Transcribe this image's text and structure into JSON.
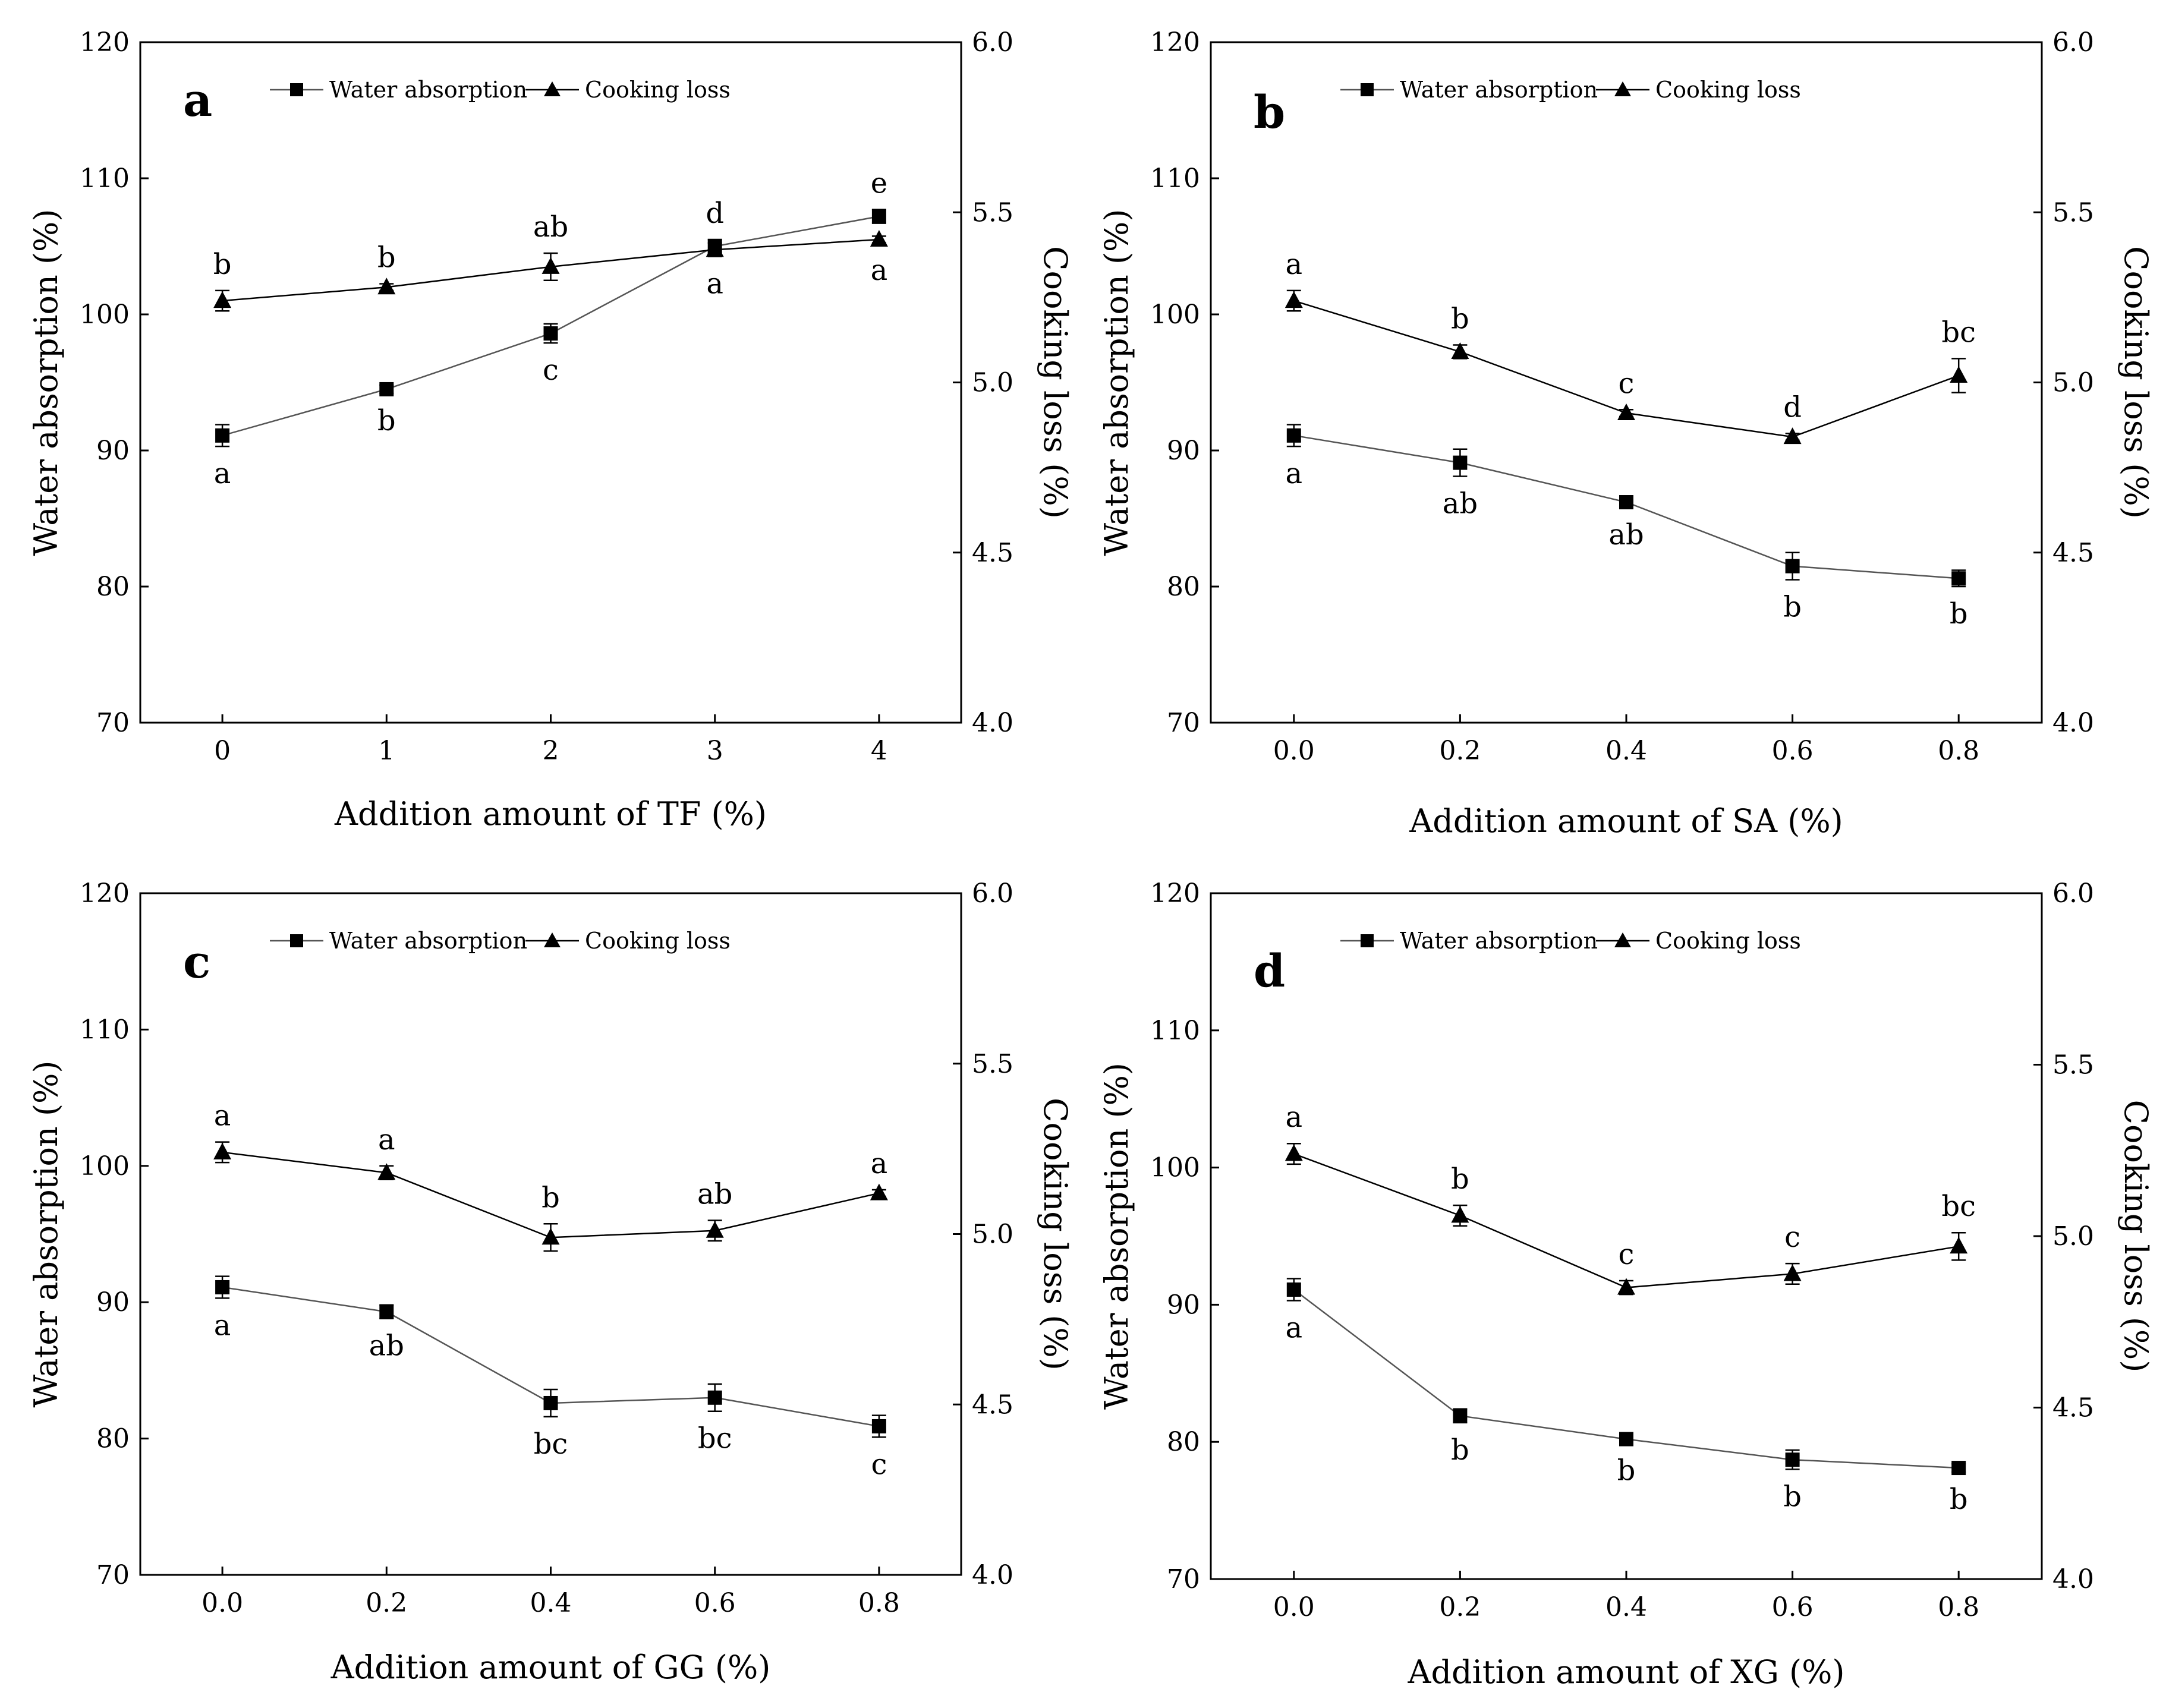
{
  "chart_data": [
    {
      "type": "line",
      "panel_label": "a",
      "x": [
        0,
        1,
        2,
        3,
        4
      ],
      "x_tick_labels": [
        "0",
        "1",
        "2",
        "3",
        "4"
      ],
      "xlabel": "Addition amount of TF (%)",
      "ylabel": "Water absorption (%)",
      "y2label": "Cooking loss (%)",
      "ylim": [
        70,
        120
      ],
      "y_ticks": [
        "70",
        "80",
        "90",
        "100",
        "110",
        "120"
      ],
      "y2lim": [
        4.0,
        6.0
      ],
      "y2_ticks": [
        "4.0",
        "4.5",
        "5.0",
        "5.5",
        "6.0"
      ],
      "series": [
        {
          "name": "Water absorption",
          "axis": "left",
          "marker": "square",
          "values": [
            91.1,
            94.5,
            98.6,
            105.0,
            107.2
          ],
          "errors": [
            0.8,
            0.3,
            0.7,
            0.5,
            0.5
          ],
          "letters": [
            "a",
            "b",
            "c",
            "d",
            "e"
          ]
        },
        {
          "name": "Cooking loss",
          "axis": "right",
          "marker": "triangle",
          "values": [
            5.24,
            5.28,
            5.34,
            5.39,
            5.42
          ],
          "errors": [
            0.03,
            0.01,
            0.04,
            0.02,
            0.01
          ],
          "letters": [
            "b",
            "b",
            "ab",
            "a",
            "a"
          ]
        }
      ]
    },
    {
      "type": "line",
      "panel_label": "b",
      "x": [
        0.0,
        0.2,
        0.4,
        0.6,
        0.8
      ],
      "x_tick_labels": [
        "0.0",
        "0.2",
        "0.4",
        "0.6",
        "0.8"
      ],
      "xlabel": "Addition amount of SA (%)",
      "ylabel": "Water absorption (%)",
      "y2label": "Cooking loss (%)",
      "ylim": [
        70,
        120
      ],
      "y_ticks": [
        "70",
        "80",
        "90",
        "100",
        "110",
        "120"
      ],
      "y2lim": [
        4.0,
        6.0
      ],
      "y2_ticks": [
        "4.0",
        "4.5",
        "5.0",
        "5.5",
        "6.0"
      ],
      "series": [
        {
          "name": "Water absorption",
          "axis": "left",
          "marker": "square",
          "values": [
            91.1,
            89.1,
            86.2,
            81.5,
            80.6
          ],
          "errors": [
            0.8,
            1.0,
            0.4,
            1.0,
            0.6
          ],
          "letters": [
            "a",
            "ab",
            "ab",
            "b",
            "b"
          ]
        },
        {
          "name": "Cooking loss",
          "axis": "right",
          "marker": "triangle",
          "values": [
            5.24,
            5.09,
            4.91,
            4.84,
            5.02
          ],
          "errors": [
            0.03,
            0.02,
            0.01,
            0.01,
            0.05
          ],
          "letters": [
            "a",
            "b",
            "c",
            "d",
            "bc"
          ]
        }
      ]
    },
    {
      "type": "line",
      "panel_label": "c",
      "x": [
        0.0,
        0.2,
        0.4,
        0.6,
        0.8
      ],
      "x_tick_labels": [
        "0.0",
        "0.2",
        "0.4",
        "0.6",
        "0.8"
      ],
      "xlabel": "Addition amount of GG (%)",
      "ylabel": "Water absorption (%)",
      "y2label": "Cooking loss (%)",
      "ylim": [
        70,
        120
      ],
      "y_ticks": [
        "70",
        "80",
        "90",
        "100",
        "110",
        "120"
      ],
      "y2lim": [
        4.0,
        6.0
      ],
      "y2_ticks": [
        "4.0",
        "4.5",
        "5.0",
        "5.5",
        "6.0"
      ],
      "series": [
        {
          "name": "Water absorption",
          "axis": "left",
          "marker": "square",
          "values": [
            91.1,
            89.3,
            82.6,
            83.0,
            80.9
          ],
          "errors": [
            0.8,
            0.5,
            1.0,
            1.0,
            0.8
          ],
          "letters": [
            "a",
            "ab",
            "bc",
            "bc",
            "c"
          ]
        },
        {
          "name": "Cooking loss",
          "axis": "right",
          "marker": "triangle",
          "values": [
            5.24,
            5.18,
            4.99,
            5.01,
            5.12
          ],
          "errors": [
            0.03,
            0.02,
            0.04,
            0.03,
            0.01
          ],
          "letters": [
            "a",
            "a",
            "b",
            "ab",
            "a"
          ]
        }
      ]
    },
    {
      "type": "line",
      "panel_label": "d",
      "x": [
        0.0,
        0.2,
        0.4,
        0.6,
        0.8
      ],
      "x_tick_labels": [
        "0.0",
        "0.2",
        "0.4",
        "0.6",
        "0.8"
      ],
      "xlabel": "Addition amount of XG (%)",
      "ylabel": "Water absorption (%)",
      "y2label": "Cooking loss (%)",
      "ylim": [
        70,
        120
      ],
      "y_ticks": [
        "70",
        "80",
        "90",
        "100",
        "110",
        "120"
      ],
      "y2lim": [
        4.0,
        6.0
      ],
      "y2_ticks": [
        "4.0",
        "4.5",
        "5.0",
        "5.5",
        "6.0"
      ],
      "series": [
        {
          "name": "Water absorption",
          "axis": "left",
          "marker": "square",
          "values": [
            91.1,
            81.9,
            80.2,
            78.7,
            78.1
          ],
          "errors": [
            0.8,
            0.5,
            0.3,
            0.7,
            0.3
          ],
          "letters": [
            "a",
            "b",
            "b",
            "b",
            "b"
          ]
        },
        {
          "name": "Cooking loss",
          "axis": "right",
          "marker": "triangle",
          "values": [
            5.24,
            5.06,
            4.85,
            4.89,
            4.97
          ],
          "errors": [
            0.03,
            0.03,
            0.02,
            0.03,
            0.04
          ],
          "letters": [
            "a",
            "b",
            "c",
            "c",
            "bc"
          ]
        }
      ]
    }
  ]
}
